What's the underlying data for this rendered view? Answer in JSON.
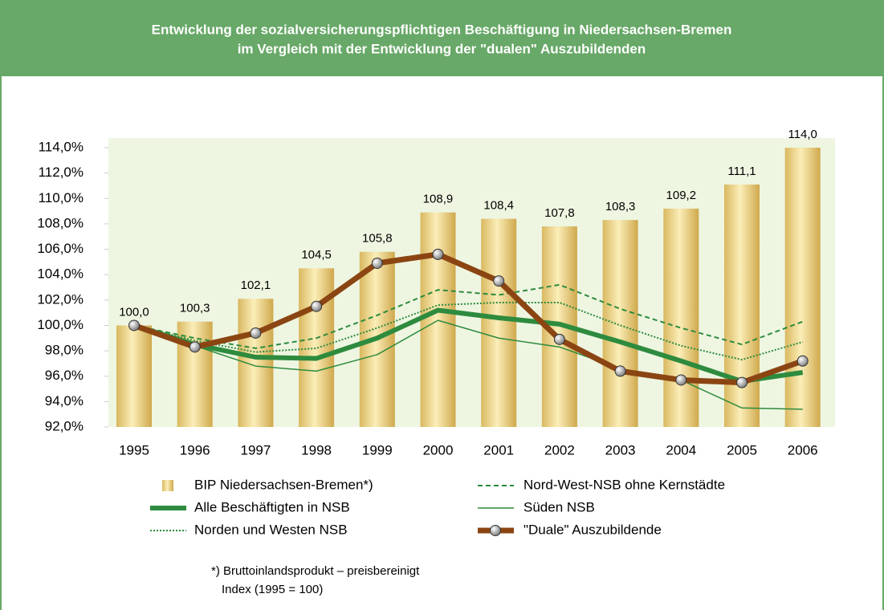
{
  "chart_data": {
    "type": "bar_line",
    "title": [
      "Entwicklung der sozialversicherungspflichtigen Beschäftigung in Niedersachsen-Bremen",
      "im Vergleich mit der Entwicklung der \"dualen\" Auszubildenden"
    ],
    "categories": [
      "1995",
      "1996",
      "1997",
      "1998",
      "1999",
      "2000",
      "2001",
      "2002",
      "2003",
      "2004",
      "2005",
      "2006"
    ],
    "ylim": [
      92,
      114
    ],
    "yticks": [
      {
        "value": 92,
        "label": "92,0%"
      },
      {
        "value": 94,
        "label": "94,0%"
      },
      {
        "value": 96,
        "label": "96,0%"
      },
      {
        "value": 98,
        "label": "98,0%"
      },
      {
        "value": 100,
        "label": "100,0%"
      },
      {
        "value": 102,
        "label": "102,0%"
      },
      {
        "value": 104,
        "label": "104,0%"
      },
      {
        "value": 106,
        "label": "106,0%"
      },
      {
        "value": 108,
        "label": "108,0%"
      },
      {
        "value": 110,
        "label": "110,0%"
      },
      {
        "value": 112,
        "label": "112,0%"
      },
      {
        "value": 114,
        "label": "114,0%"
      }
    ],
    "series": [
      {
        "name": "BIP Niedersachsen-Bremen*)",
        "style": "bar",
        "color": "#e8cf7a",
        "values": [
          100.0,
          100.3,
          102.1,
          104.5,
          105.8,
          108.9,
          108.4,
          107.8,
          108.3,
          109.2,
          111.1,
          114.0
        ],
        "value_labels": [
          "100,0",
          "100,3",
          "102,1",
          "104,5",
          "105,8",
          "108,9",
          "108,4",
          "107,8",
          "108,3",
          "109,2",
          "111,1",
          "114,0"
        ]
      },
      {
        "name": "Alle Beschäftigten in NSB",
        "style": "thick",
        "color": "#2e8b3e",
        "values": [
          100.0,
          98.5,
          97.5,
          97.4,
          99.0,
          101.2,
          100.6,
          100.1,
          98.7,
          97.2,
          95.6,
          96.3
        ]
      },
      {
        "name": "Norden und Westen NSB",
        "style": "dotted",
        "color": "#2e8b3e",
        "values": [
          100.0,
          98.8,
          97.9,
          98.2,
          99.8,
          101.6,
          101.8,
          101.8,
          100.0,
          98.4,
          97.3,
          98.7
        ]
      },
      {
        "name": "Nord-West-NSB ohne Kernstädte",
        "style": "dashed",
        "color": "#2e8b3e",
        "values": [
          100.0,
          99.0,
          98.2,
          99.0,
          100.8,
          102.8,
          102.4,
          103.2,
          101.3,
          99.8,
          98.5,
          100.3
        ]
      },
      {
        "name": "Süden NSB",
        "style": "thin",
        "color": "#2e8b3e",
        "values": [
          100.0,
          98.4,
          96.8,
          96.4,
          97.7,
          100.4,
          99.0,
          98.3,
          96.6,
          95.7,
          93.5,
          93.4
        ]
      },
      {
        "name": "\"Duale\" Auszubildende",
        "style": "duale",
        "color": "#8b4513",
        "values": [
          100.0,
          98.3,
          99.4,
          101.5,
          104.9,
          105.6,
          103.5,
          98.9,
          96.4,
          95.7,
          95.5,
          97.2
        ]
      }
    ],
    "footnote": [
      "*) Bruttoinlandsprodukt – preisbereinigt",
      "Index (1995 = 100)"
    ]
  }
}
